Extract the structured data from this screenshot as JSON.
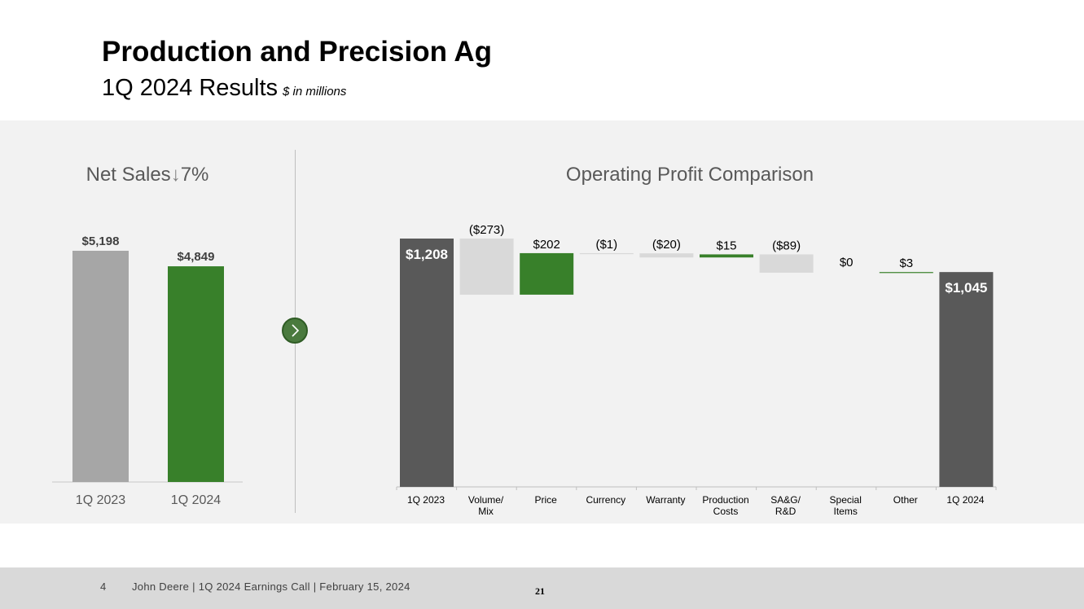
{
  "header": {
    "title": "Production and Precision Ag",
    "subtitle": "1Q 2024 Results",
    "unit": "$ in millions"
  },
  "footer": {
    "page_number": "4",
    "text": "John Deere | 1Q 2024 Earnings Call | February 15, 2024",
    "slide_number": "21"
  },
  "colors": {
    "gray_bar": "#a6a6a6",
    "green": "#38802a",
    "dark": "#595959",
    "light": "#d9d9d9"
  },
  "chart_data": [
    {
      "type": "bar",
      "title": "Net Sales",
      "title_suffix": "7%",
      "direction_icon": "down-arrow-icon",
      "categories": [
        "1Q 2023",
        "1Q 2024"
      ],
      "values": [
        5198,
        4849
      ],
      "labels": [
        "$5,198",
        "$4,849"
      ],
      "colors": [
        "#a6a6a6",
        "#38802a"
      ]
    },
    {
      "type": "bar",
      "subtype": "waterfall",
      "title": "Operating Profit Comparison",
      "categories": [
        "1Q 2023",
        "Volume/\nMix",
        "Price",
        "Currency",
        "Warranty",
        "Production\nCosts",
        "SA&G/\nR&D",
        "Special\nItems",
        "Other",
        "1Q 2024"
      ],
      "values": [
        1208,
        -273,
        202,
        -1,
        -20,
        15,
        -89,
        0,
        3,
        1045
      ],
      "kinds": [
        "total",
        "delta",
        "delta",
        "delta",
        "delta",
        "delta",
        "delta",
        "delta",
        "delta",
        "total"
      ],
      "labels": [
        "$1,208",
        "($273)",
        "$202",
        "($1)",
        "($20)",
        "$15",
        "($89)",
        "$0",
        "$3",
        "$1,045"
      ]
    }
  ]
}
